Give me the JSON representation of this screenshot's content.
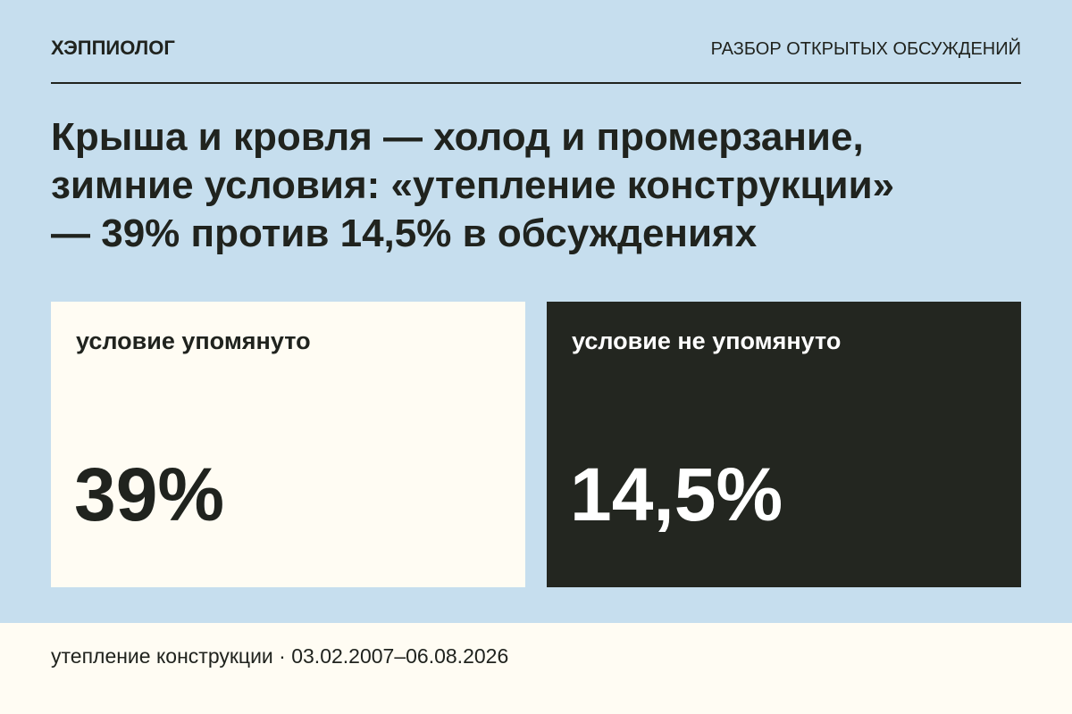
{
  "header": {
    "brand": "ХЭППИОЛОГ",
    "section": "РАЗБОР ОТКРЫТЫХ ОБСУЖДЕНИЙ"
  },
  "title": [
    "Крыша и кровля — холод и промерзание,",
    "зимние условия: «утепление конструкции»",
    "— 39% против 14,5% в обсуждениях"
  ],
  "cards": [
    {
      "label": "условие упомянуто",
      "value": "39%"
    },
    {
      "label": "условие не упомянуто",
      "value": "14,5%"
    }
  ],
  "footer": "утепление конструкции · 03.02.2007–06.08.2026"
}
